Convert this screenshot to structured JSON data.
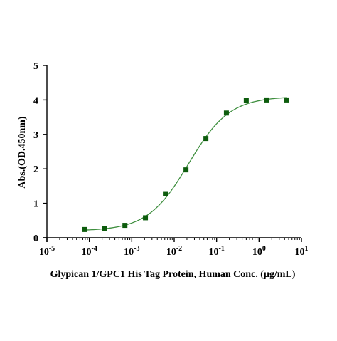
{
  "chart_data": {
    "type": "scatter",
    "title": "",
    "xlabel": "Glypican 1/GPC1 His Tag Protein, Human Conc. (μg/mL)",
    "ylabel": "Abs.(OD.450nm)",
    "x_scale": "log10",
    "xlim": [
      1e-05,
      10
    ],
    "ylim": [
      0,
      5
    ],
    "grid": false,
    "legend": "none",
    "x_ticks": [
      {
        "value": 1e-05,
        "base": "10",
        "exp": "-5"
      },
      {
        "value": 0.0001,
        "base": "10",
        "exp": "-4"
      },
      {
        "value": 0.001,
        "base": "10",
        "exp": "-3"
      },
      {
        "value": 0.01,
        "base": "10",
        "exp": "-2"
      },
      {
        "value": 0.1,
        "base": "10",
        "exp": "-1"
      },
      {
        "value": 1,
        "base": "10",
        "exp": "0"
      },
      {
        "value": 10,
        "base": "10",
        "exp": "1"
      }
    ],
    "y_ticks": [
      {
        "value": 0,
        "label": "0"
      },
      {
        "value": 1,
        "label": "1"
      },
      {
        "value": 2,
        "label": "2"
      },
      {
        "value": 3,
        "label": "3"
      },
      {
        "value": 4,
        "label": "4"
      },
      {
        "value": 5,
        "label": "5"
      }
    ],
    "series": [
      {
        "marker_color": "#0d5c0d",
        "line_color": "#3f8f3f",
        "marker": "square",
        "fit": "4PL",
        "points": [
          {
            "x": 7.6e-05,
            "y": 0.24
          },
          {
            "x": 0.00023,
            "y": 0.26
          },
          {
            "x": 0.00069,
            "y": 0.36
          },
          {
            "x": 0.0021,
            "y": 0.58
          },
          {
            "x": 0.0062,
            "y": 1.28
          },
          {
            "x": 0.019,
            "y": 1.97
          },
          {
            "x": 0.056,
            "y": 2.88
          },
          {
            "x": 0.17,
            "y": 3.62
          },
          {
            "x": 0.5,
            "y": 3.99
          },
          {
            "x": 1.5,
            "y": 4.0
          },
          {
            "x": 4.5,
            "y": 4.0
          }
        ]
      }
    ]
  }
}
